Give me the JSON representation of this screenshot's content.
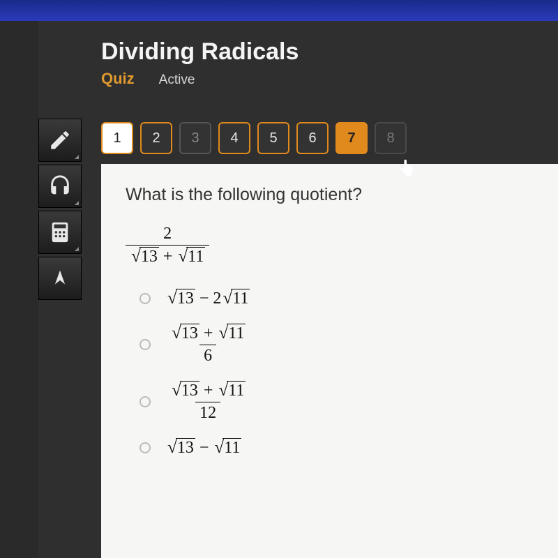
{
  "colors": {
    "accent": "#e08a1e",
    "bg_dark": "#2f2f2f",
    "frame": "#2a3aba",
    "content_bg": "#f6f6f4",
    "text_light": "#f5f5f5",
    "text_dark": "#222222"
  },
  "header": {
    "title": "Dividing Radicals",
    "quiz_label": "Quiz",
    "status": "Active"
  },
  "tools": [
    {
      "name": "pencil"
    },
    {
      "name": "headphones"
    },
    {
      "name": "calculator"
    },
    {
      "name": "compass"
    }
  ],
  "question_nav": [
    {
      "n": "1",
      "state": "current"
    },
    {
      "n": "2",
      "state": "answered"
    },
    {
      "n": "3",
      "state": "skipped"
    },
    {
      "n": "4",
      "state": "answered"
    },
    {
      "n": "5",
      "state": "answered"
    },
    {
      "n": "6",
      "state": "answered"
    },
    {
      "n": "7",
      "state": "active-q"
    },
    {
      "n": "8",
      "state": "upcoming"
    }
  ],
  "question": {
    "prompt": "What is the following quotient?",
    "expression": {
      "type": "fraction",
      "numerator": "2",
      "denominator_terms": [
        {
          "sqrt": "13"
        },
        {
          "op": "+"
        },
        {
          "sqrt": "11"
        }
      ]
    },
    "options": [
      {
        "id": "a",
        "terms": [
          {
            "sqrt": "13"
          },
          {
            "text": " − 2"
          },
          {
            "sqrt": "11"
          }
        ]
      },
      {
        "id": "b",
        "fraction": {
          "num_terms": [
            {
              "sqrt": "13"
            },
            {
              "text": " + "
            },
            {
              "sqrt": "11"
            }
          ],
          "den": "6"
        }
      },
      {
        "id": "c",
        "fraction": {
          "num_terms": [
            {
              "sqrt": "13"
            },
            {
              "text": " + "
            },
            {
              "sqrt": "11"
            }
          ],
          "den": "12"
        }
      },
      {
        "id": "d",
        "terms": [
          {
            "sqrt": "13"
          },
          {
            "text": " − "
          },
          {
            "sqrt": "11"
          }
        ]
      }
    ]
  }
}
